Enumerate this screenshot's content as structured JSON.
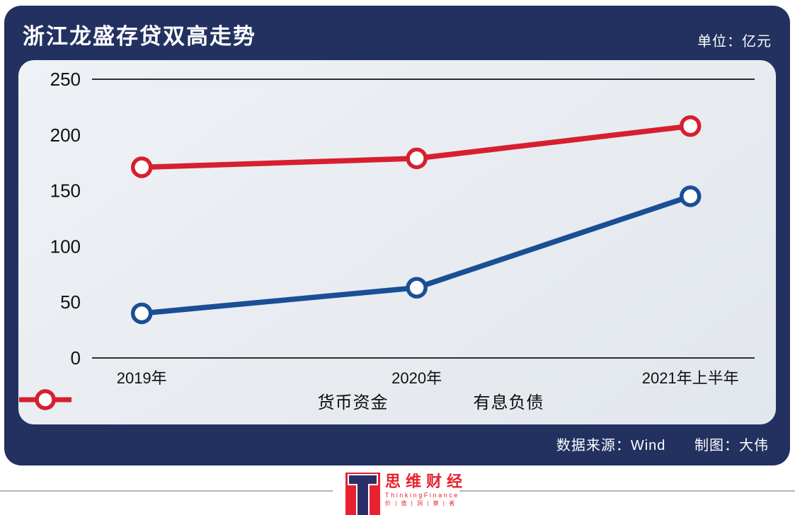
{
  "header": {
    "title": "浙江龙盛存贷双高走势",
    "unit_label": "单位：亿元"
  },
  "chart_data": {
    "type": "line",
    "title": "浙江龙盛存贷双高走势",
    "unit": "亿元",
    "categories": [
      "2019年",
      "2020年",
      "2021年上半年"
    ],
    "series": [
      {
        "name": "货币资金",
        "color": "#1a4e96",
        "values": [
          40,
          63,
          145
        ]
      },
      {
        "name": "有息负债",
        "color": "#d71f2f",
        "values": [
          171,
          179,
          208
        ]
      }
    ],
    "ylim": [
      0,
      250
    ],
    "yticks": [
      0,
      50,
      100,
      150,
      200,
      250
    ],
    "gridline_values": [
      0,
      250
    ],
    "legend_position": "bottom",
    "marker": "open-circle",
    "grid": "top-and-bottom-only"
  },
  "source_row": {
    "source": "数据来源：Wind",
    "author": "制图：大伟"
  },
  "brand": {
    "logo_letter": "T",
    "name_cn": "思维财经",
    "name_en": "ThinkingFinance",
    "tagline": "价 | 值 | 洞 | 察 | 者"
  },
  "colors": {
    "card_navy": "#223160",
    "panel_bg": "#e9edf2",
    "axis_text": "#111111",
    "grid_line": "#2e2e2e",
    "brand_red": "#e8212e",
    "logo_t_navy": "#2a3067"
  }
}
